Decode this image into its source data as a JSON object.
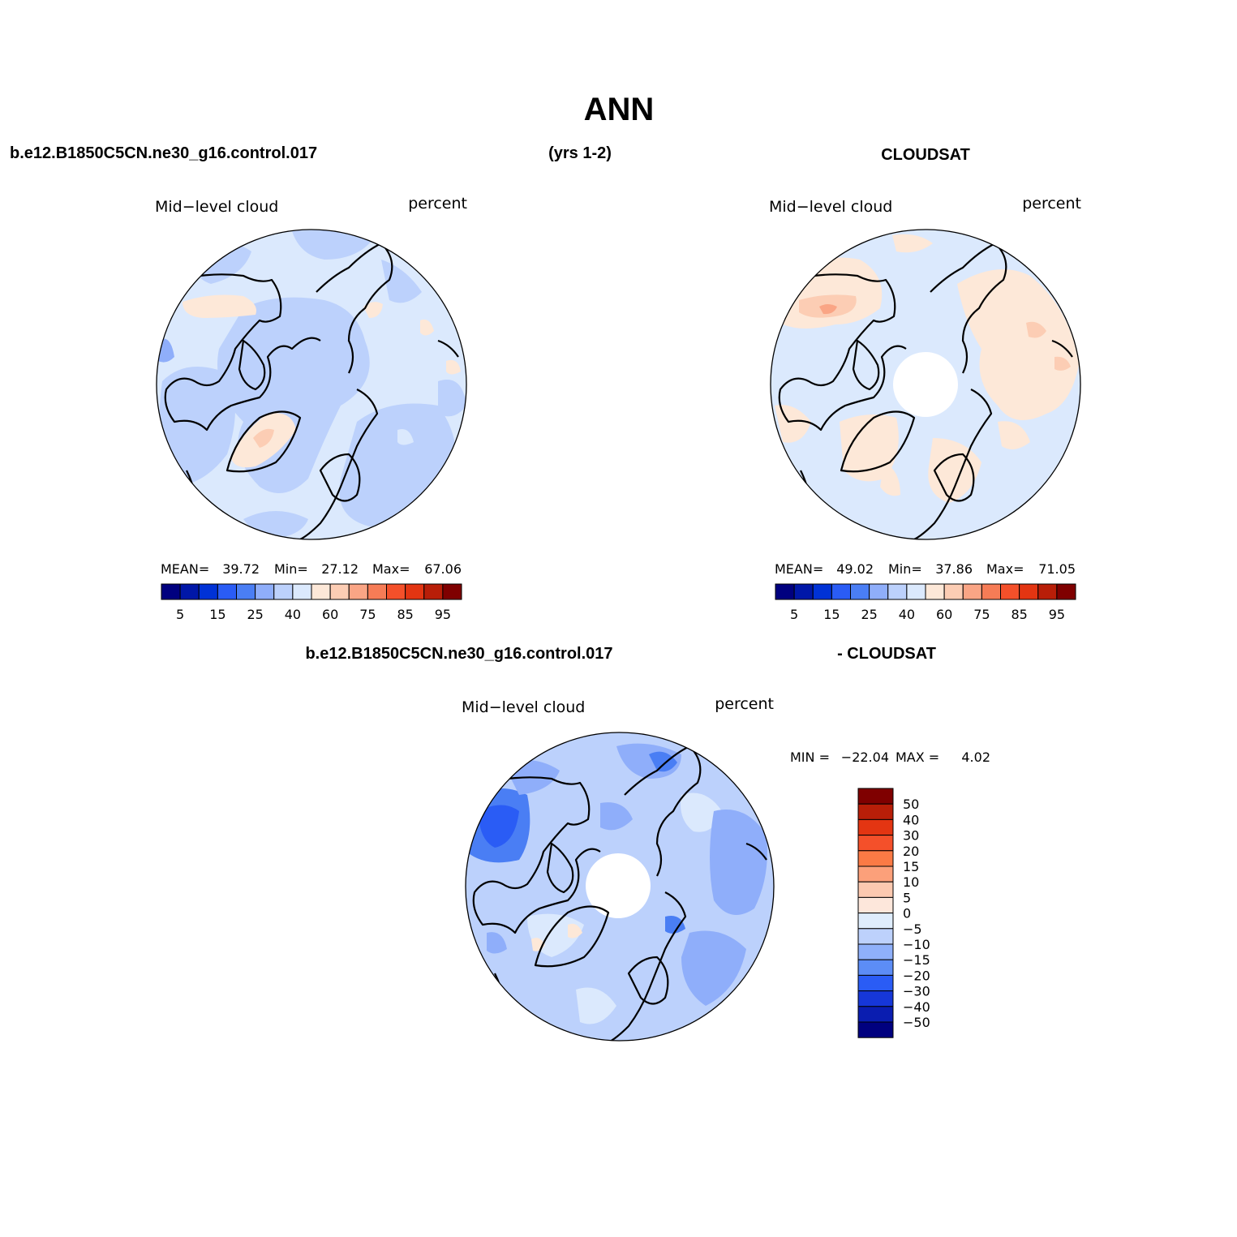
{
  "title": "ANN",
  "headers": {
    "case_name": "b.e12.B1850C5CN.ne30_g16.control.017",
    "years": "(yrs 1-2)",
    "obs_name": "CLOUDSAT",
    "diff_case": "b.e12.B1850C5CN.ne30_g16.control.017",
    "diff_obs": "- CLOUDSAT"
  },
  "panels": [
    {
      "id": "model",
      "variable": "Mid−level cloud",
      "units": "percent",
      "stats": {
        "mean_label": "MEAN=",
        "mean": "39.72",
        "min_label": "Min=",
        "min": "27.12",
        "max_label": "Max=",
        "max": "67.06"
      }
    },
    {
      "id": "obs",
      "variable": "Mid−level cloud",
      "units": "percent",
      "stats": {
        "mean_label": "MEAN=",
        "mean": "49.02",
        "min_label": "Min=",
        "min": "37.86",
        "max_label": "Max=",
        "max": "71.05"
      }
    },
    {
      "id": "diff",
      "variable": "Mid−level cloud",
      "units": "percent",
      "stats": {
        "min_label": "MIN =",
        "min": "−22.04",
        "max_label": "MAX =",
        "max": "4.02"
      }
    }
  ],
  "colorbar_h": {
    "colors": [
      "#00007f",
      "#0017a8",
      "#0032d6",
      "#2a5cf5",
      "#4a7ef4",
      "#8faefa",
      "#bcd1fc",
      "#dbe9fd",
      "#fde8d8",
      "#fccdb4",
      "#faa585",
      "#f67c56",
      "#f4502a",
      "#e33512",
      "#b81e08",
      "#7f0000"
    ],
    "tick_labels": [
      "5",
      "15",
      "25",
      "40",
      "60",
      "75",
      "85",
      "95"
    ]
  },
  "colorbar_v": {
    "colors_top_to_bottom": [
      "#7f0000",
      "#b81e08",
      "#e33512",
      "#f4502a",
      "#fb7a45",
      "#fca07a",
      "#fcc9b0",
      "#fde7db",
      "#dfedfd",
      "#bdd1fc",
      "#8fb0fa",
      "#5c8df6",
      "#2a5cf5",
      "#1637d8",
      "#0a1db0",
      "#00007f"
    ],
    "tick_labels": [
      "50",
      "40",
      "30",
      "20",
      "15",
      "10",
      "5",
      "0",
      "−5",
      "−10",
      "−15",
      "−20",
      "−30",
      "−40",
      "−50"
    ]
  },
  "map_colors": {
    "model_base": "#dbe9fd",
    "obs_base": "#dbe9fd",
    "diff_base": "#bcd1fc"
  }
}
